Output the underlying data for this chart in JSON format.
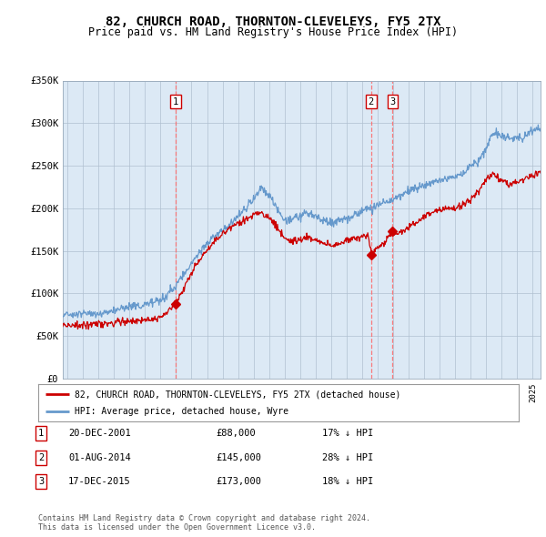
{
  "title1": "82, CHURCH ROAD, THORNTON-CLEVELEYS, FY5 2TX",
  "title2": "Price paid vs. HM Land Registry's House Price Index (HPI)",
  "bg_color": "#dce9f5",
  "fig_bg_color": "#ffffff",
  "hpi_color": "#6699cc",
  "price_color": "#cc0000",
  "marker_color": "#cc0000",
  "grid_color": "#aabbcc",
  "transactions": [
    {
      "num": 1,
      "date": "20-DEC-2001",
      "price": 88000,
      "pct": "17%",
      "dir": "↓",
      "x_year": 2001.97,
      "y_val": 88000
    },
    {
      "num": 2,
      "date": "01-AUG-2014",
      "price": 145000,
      "pct": "28%",
      "dir": "↓",
      "x_year": 2014.58,
      "y_val": 145000
    },
    {
      "num": 3,
      "date": "17-DEC-2015",
      "price": 173000,
      "pct": "18%",
      "dir": "↓",
      "x_year": 2015.96,
      "y_val": 173000
    }
  ],
  "legend_label_price": "82, CHURCH ROAD, THORNTON-CLEVELEYS, FY5 2TX (detached house)",
  "legend_label_hpi": "HPI: Average price, detached house, Wyre",
  "footnote1": "Contains HM Land Registry data © Crown copyright and database right 2024.",
  "footnote2": "This data is licensed under the Open Government Licence v3.0.",
  "ylim": [
    0,
    350000
  ],
  "xlim_start": 1994.7,
  "xlim_end": 2025.5
}
